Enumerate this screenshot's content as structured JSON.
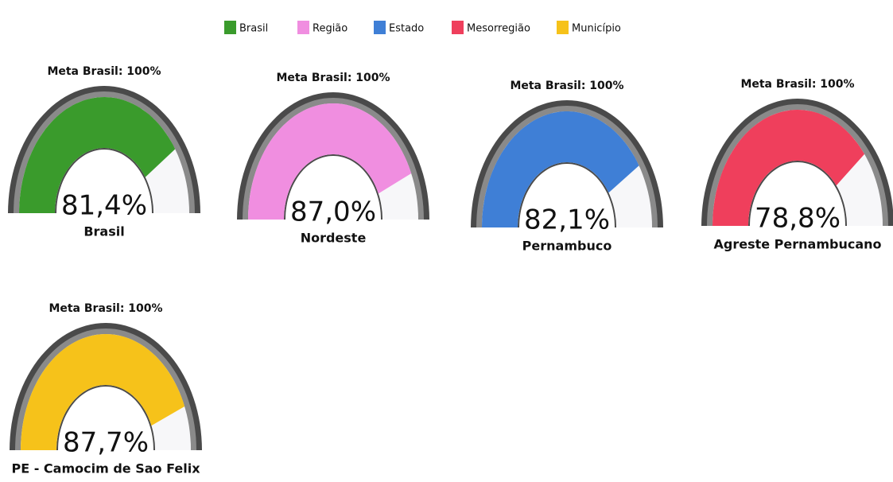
{
  "legend": [
    {
      "name": "Brasil",
      "color": "#3a9b2c"
    },
    {
      "name": "Região",
      "color": "#f08ee0"
    },
    {
      "name": "Estado",
      "color": "#3f7fd6"
    },
    {
      "name": "Mesorregião",
      "color": "#ef3f5c"
    },
    {
      "name": "Município",
      "color": "#f6c21a"
    }
  ],
  "chart_data": [
    {
      "type": "gauge",
      "title": "Meta Brasil: 100%",
      "category": "Brasil",
      "value": 81.4,
      "value_label": "81,4%",
      "color": "#3a9b2c",
      "ylim": [
        0,
        100
      ]
    },
    {
      "type": "gauge",
      "title": "Meta Brasil: 100%",
      "category": "Nordeste",
      "value": 87.0,
      "value_label": "87,0%",
      "color": "#f08ee0",
      "ylim": [
        0,
        100
      ]
    },
    {
      "type": "gauge",
      "title": "Meta Brasil: 100%",
      "category": "Pernambuco",
      "value": 82.1,
      "value_label": "82,1%",
      "color": "#3f7fd6",
      "ylim": [
        0,
        100
      ]
    },
    {
      "type": "gauge",
      "title": "Meta Brasil: 100%",
      "category": "Agreste Pernambucano",
      "value": 78.8,
      "value_label": "78,8%",
      "color": "#ef3f5c",
      "ylim": [
        0,
        100
      ]
    },
    {
      "type": "gauge",
      "title": "Meta Brasil: 100%",
      "category": "PE - Camocim de Sao Felix",
      "value": 87.7,
      "value_label": "87,7%",
      "color": "#f6c21a",
      "ylim": [
        0,
        100
      ]
    }
  ]
}
